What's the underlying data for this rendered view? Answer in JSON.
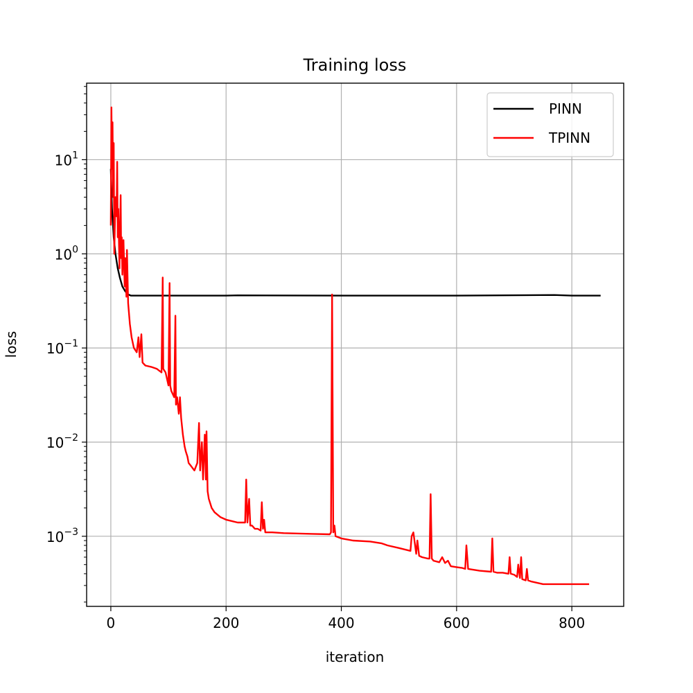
{
  "chart_data": {
    "type": "line",
    "title": "Training loss",
    "xlabel": "iteration",
    "ylabel": "loss",
    "xlim": [
      -42,
      890
    ],
    "ylim": [
      0.00018,
      65
    ],
    "yscale": "log",
    "grid": true,
    "legend_position": "top-right",
    "x_ticks": [
      {
        "value": 0,
        "label": "0"
      },
      {
        "value": 200,
        "label": "200"
      },
      {
        "value": 400,
        "label": "400"
      },
      {
        "value": 600,
        "label": "600"
      },
      {
        "value": 800,
        "label": "800"
      }
    ],
    "y_ticks": [
      {
        "value": 0.001,
        "base": "10",
        "exp": "−3"
      },
      {
        "value": 0.01,
        "base": "10",
        "exp": "−2"
      },
      {
        "value": 0.1,
        "base": "10",
        "exp": "−1"
      },
      {
        "value": 1,
        "base": "10",
        "exp": "0"
      },
      {
        "value": 10,
        "base": "10",
        "exp": "1"
      }
    ],
    "series": [
      {
        "name": "PINN",
        "color": "#000000",
        "x": [
          0,
          2,
          5,
          8,
          12,
          16,
          20,
          25,
          30,
          35,
          50,
          100,
          200,
          220,
          400,
          600,
          770,
          800,
          850
        ],
        "y": [
          8.0,
          3.0,
          1.5,
          1.0,
          0.7,
          0.55,
          0.45,
          0.4,
          0.37,
          0.36,
          0.36,
          0.36,
          0.36,
          0.362,
          0.36,
          0.36,
          0.365,
          0.36,
          0.36
        ]
      },
      {
        "name": "TPINN",
        "color": "#ff0000",
        "x": [
          0,
          1,
          2,
          3,
          4,
          5,
          6,
          8,
          10,
          11,
          12,
          13,
          15,
          17,
          18,
          19,
          20,
          22,
          24,
          25,
          27,
          28,
          30,
          33,
          36,
          40,
          45,
          48,
          50,
          53,
          55,
          60,
          70,
          80,
          88,
          90,
          91,
          95,
          100,
          102,
          103,
          105,
          110,
          112,
          113,
          115,
          118,
          120,
          122,
          125,
          128,
          130,
          133,
          135,
          140,
          145,
          150,
          153,
          155,
          158,
          160,
          163,
          165,
          166,
          168,
          170,
          175,
          180,
          190,
          200,
          210,
          220,
          230,
          233,
          235,
          237,
          240,
          242,
          245,
          250,
          255,
          260,
          262,
          264,
          266,
          268,
          270,
          280,
          300,
          350,
          380,
          382,
          384,
          386,
          388,
          390,
          400,
          420,
          450,
          470,
          475,
          480,
          500,
          520,
          522,
          525,
          530,
          532,
          535,
          540,
          550,
          553,
          555,
          557,
          560,
          570,
          575,
          580,
          585,
          590,
          600,
          610,
          615,
          617,
          620,
          640,
          660,
          662,
          664,
          670,
          680,
          690,
          692,
          694,
          700,
          705,
          707,
          710,
          712,
          714,
          720,
          722,
          724,
          730,
          740,
          750,
          760,
          800,
          830
        ],
        "y": [
          2.0,
          36.0,
          8.0,
          25.0,
          4.0,
          15.0,
          1.0,
          4.0,
          2.5,
          9.5,
          1.5,
          3.0,
          0.7,
          4.2,
          0.9,
          1.5,
          0.6,
          1.4,
          0.45,
          0.9,
          0.35,
          1.1,
          0.3,
          0.18,
          0.13,
          0.1,
          0.09,
          0.13,
          0.08,
          0.14,
          0.07,
          0.065,
          0.063,
          0.06,
          0.055,
          0.56,
          0.06,
          0.055,
          0.04,
          0.49,
          0.04,
          0.035,
          0.03,
          0.22,
          0.025,
          0.03,
          0.02,
          0.03,
          0.018,
          0.012,
          0.009,
          0.008,
          0.007,
          0.006,
          0.0055,
          0.005,
          0.006,
          0.016,
          0.005,
          0.01,
          0.004,
          0.012,
          0.004,
          0.013,
          0.003,
          0.0025,
          0.002,
          0.0018,
          0.0016,
          0.0015,
          0.00145,
          0.0014,
          0.0014,
          0.0014,
          0.004,
          0.0014,
          0.0025,
          0.0013,
          0.0013,
          0.0012,
          0.0012,
          0.00115,
          0.0023,
          0.0012,
          0.0015,
          0.0011,
          0.0011,
          0.0011,
          0.00108,
          0.00106,
          0.00105,
          0.0011,
          0.37,
          0.0011,
          0.0013,
          0.001,
          0.00095,
          0.0009,
          0.00088,
          0.00084,
          0.00082,
          0.0008,
          0.00075,
          0.0007,
          0.001,
          0.0011,
          0.00065,
          0.0009,
          0.00062,
          0.0006,
          0.00058,
          0.00058,
          0.0028,
          0.00058,
          0.00055,
          0.00053,
          0.0006,
          0.00052,
          0.00055,
          0.00048,
          0.00047,
          0.00046,
          0.00045,
          0.0008,
          0.00045,
          0.00043,
          0.00042,
          0.00095,
          0.00042,
          0.00041,
          0.00041,
          0.0004,
          0.0006,
          0.0004,
          0.00039,
          0.00037,
          0.0005,
          0.00036,
          0.0006,
          0.00035,
          0.00034,
          0.00045,
          0.00034,
          0.00033,
          0.00032,
          0.00031,
          0.00031,
          0.00031,
          0.00031
        ]
      }
    ]
  }
}
